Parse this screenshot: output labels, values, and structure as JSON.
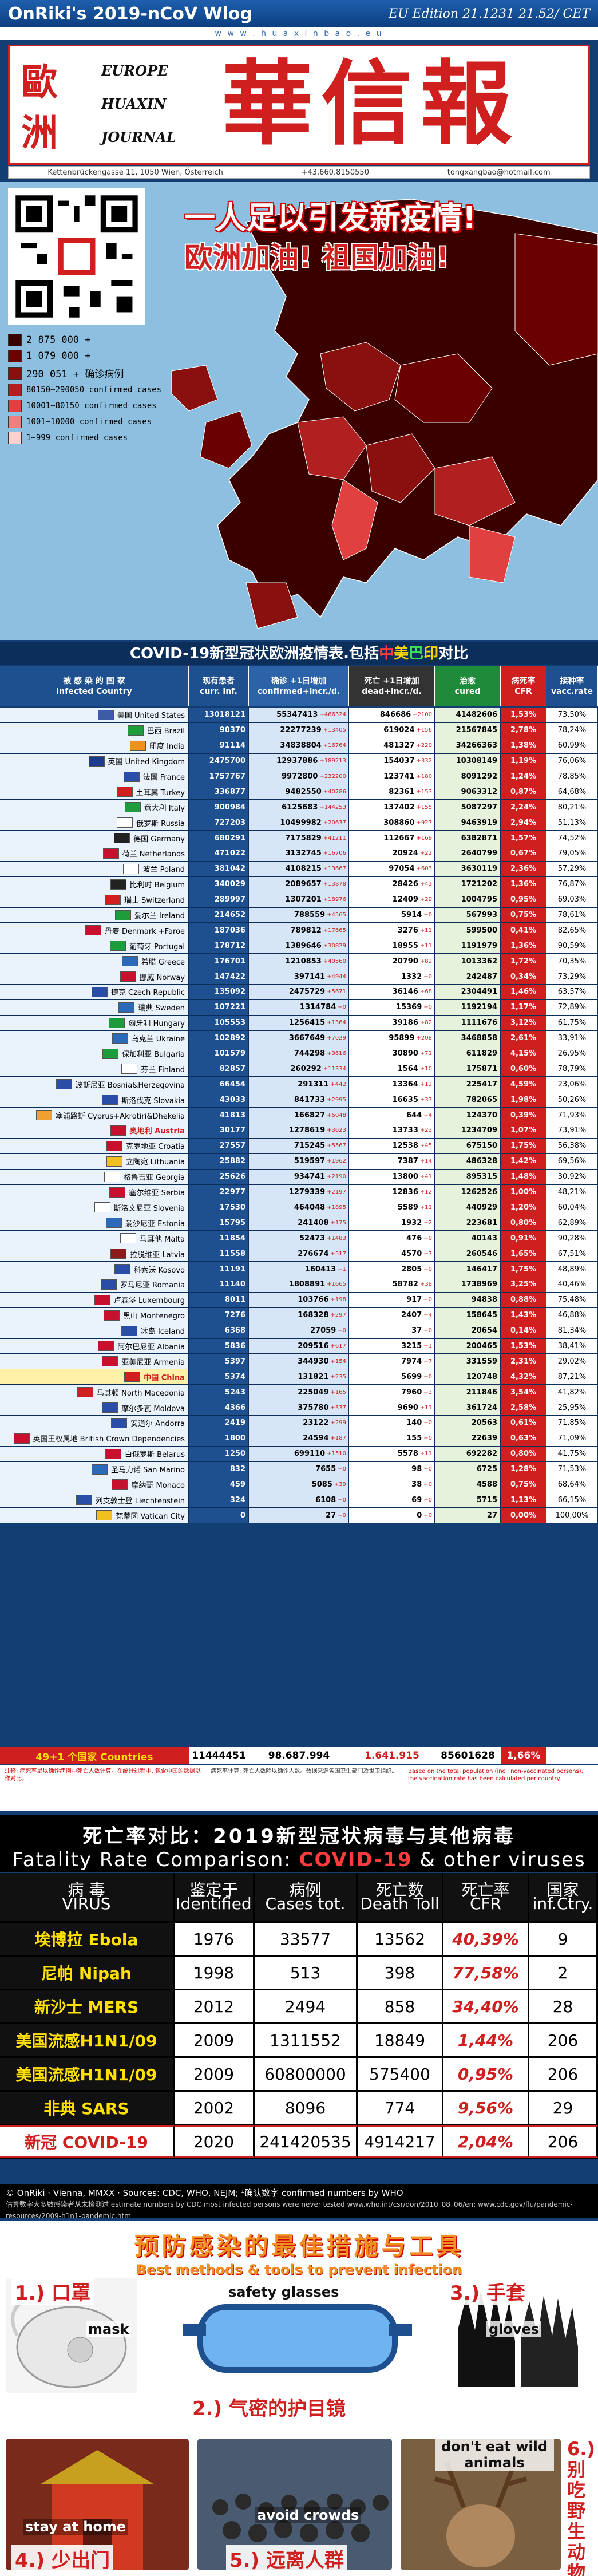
{
  "header": {
    "title": "OnRiki's 2019-nCoV Wlog",
    "edition": "EU Edition 21.1231 21.52/ CET",
    "url_strip": "w w w . h u a x i n b a o . e u"
  },
  "masthead": {
    "cn_left_top": "歐",
    "cn_left_bottom": "洲",
    "en_lines": [
      "EUROPE",
      "HUAXIN",
      "JOURNAL"
    ],
    "cn_title": "華信報",
    "address": "Kettenbrückengasse 11, 1050 Wien, Österreich",
    "phone": "+43.660.8150550",
    "email": "tongxangbao@hotmail.com"
  },
  "slogans": {
    "line1": "一人足以引发新疫情!",
    "line2": "欧洲加油! 祖国加油!"
  },
  "legend": [
    {
      "text": "2 875 000 +",
      "color": "#3a0000"
    },
    {
      "text": "1 079 000 +",
      "color": "#6b0000"
    },
    {
      "text": "290 051 + 确诊病例",
      "color": "#8a1010"
    },
    {
      "text": "80150~290050 confirmed cases",
      "color": "#b02020"
    },
    {
      "text": "10001~80150 confirmed cases",
      "color": "#e04040"
    },
    {
      "text": "1001~10000 confirmed cases",
      "color": "#f08080"
    },
    {
      "text": "1~999 confirmed cases",
      "color": "#ffd0d0"
    }
  ],
  "table": {
    "title_pre": "COVID-19新型冠状欧洲疫情表.包括",
    "title_cn": "中",
    "title_us": "美",
    "title_br": "巴",
    "title_in": "印",
    "title_post": "对比",
    "headers": {
      "country_cn": "被 感 染 的 国 家",
      "country_en": "infected Country",
      "cur_cn": "现有患者",
      "cur_en": "curr. inf.",
      "conf_cn": "确诊 +1日增加",
      "conf_en": "confirmed+incr./d.",
      "dead_cn": "死亡 +1日增加",
      "dead_en": "dead+incr./d.",
      "cured_cn": "治愈",
      "cured_en": "cured",
      "cfr_cn": "病死率",
      "cfr_en": "CFR",
      "vac_cn": "接种率",
      "vac_en": "vacc.rate"
    },
    "rows": [
      {
        "name": "美国 United States",
        "flag": "#3c5ba8",
        "cur": "13018121",
        "conf": "55347413",
        "ci": "+466324",
        "dead": "846686",
        "di": "+2100",
        "cured": "41482606",
        "cfr": "1,53%",
        "vac": "73,50%"
      },
      {
        "name": "巴西 Brazil",
        "flag": "#1e9b3b",
        "cur": "90370",
        "conf": "22277239",
        "ci": "+13405",
        "dead": "619024",
        "di": "+156",
        "cured": "21567845",
        "cfr": "2,78%",
        "vac": "78,24%"
      },
      {
        "name": "印度 India",
        "flag": "#f09020",
        "cur": "91114",
        "conf": "34838804",
        "ci": "+16764",
        "dead": "481327",
        "di": "+220",
        "cured": "34266363",
        "cfr": "1,38%",
        "vac": "60,99%"
      },
      {
        "name": "英国 United Kingdom",
        "flag": "#1e3a8a",
        "cur": "2475700",
        "conf": "12937886",
        "ci": "+189213",
        "dead": "154037",
        "di": "+332",
        "cured": "10308149",
        "cfr": "1,19%",
        "vac": "76,06%"
      },
      {
        "name": "法国 France",
        "flag": "#2a4ea8",
        "cur": "1757767",
        "conf": "9972800",
        "ci": "+232200",
        "dead": "123741",
        "di": "+180",
        "cured": "8091292",
        "cfr": "1,24%",
        "vac": "78,85%"
      },
      {
        "name": "土耳其 Turkey",
        "flag": "#d01f1f",
        "cur": "336877",
        "conf": "9482550",
        "ci": "+40786",
        "dead": "82361",
        "di": "+153",
        "cured": "9063312",
        "cfr": "0,87%",
        "vac": "64,68%"
      },
      {
        "name": "意大利 Italy",
        "flag": "#1e9b3b",
        "cur": "900984",
        "conf": "6125683",
        "ci": "+144253",
        "dead": "137402",
        "di": "+155",
        "cured": "5087297",
        "cfr": "2,24%",
        "vac": "80,21%"
      },
      {
        "name": "俄罗斯 Russia",
        "flag": "#ffffff",
        "cur": "727203",
        "conf": "10499982",
        "ci": "+20637",
        "dead": "308860",
        "di": "+927",
        "cured": "9463919",
        "cfr": "2,94%",
        "vac": "51,13%"
      },
      {
        "name": "德国 Germany",
        "flag": "#222222",
        "cur": "680291",
        "conf": "7175829",
        "ci": "+41211",
        "dead": "112667",
        "di": "+169",
        "cured": "6382871",
        "cfr": "1,57%",
        "vac": "74,52%"
      },
      {
        "name": "荷兰 Netherlands",
        "flag": "#c8102e",
        "cur": "471022",
        "conf": "3132745",
        "ci": "+16706",
        "dead": "20924",
        "di": "+22",
        "cured": "2640799",
        "cfr": "0,67%",
        "vac": "79,05%"
      },
      {
        "name": "波兰 Poland",
        "flag": "#ffffff",
        "cur": "381042",
        "conf": "4108215",
        "ci": "+13667",
        "dead": "97054",
        "di": "+603",
        "cured": "3630119",
        "cfr": "2,36%",
        "vac": "57,29%"
      },
      {
        "name": "比利时 Belgium",
        "flag": "#222222",
        "cur": "340029",
        "conf": "2089657",
        "ci": "+13878",
        "dead": "28426",
        "di": "+41",
        "cured": "1721202",
        "cfr": "1,36%",
        "vac": "76,87%"
      },
      {
        "name": "瑞士 Switzerland",
        "flag": "#d01f1f",
        "cur": "289997",
        "conf": "1307201",
        "ci": "+18976",
        "dead": "12409",
        "di": "+29",
        "cured": "1004795",
        "cfr": "0,95%",
        "vac": "69,03%"
      },
      {
        "name": "爱尔兰 Ireland",
        "flag": "#1e9b3b",
        "cur": "214652",
        "conf": "788559",
        "ci": "+4565",
        "dead": "5914",
        "di": "+0",
        "cured": "567993",
        "cfr": "0,75%",
        "vac": "78,61%"
      },
      {
        "name": "丹麦 Denmark +Faroe",
        "flag": "#c8102e",
        "cur": "187036",
        "conf": "789812",
        "ci": "+17665",
        "dead": "3276",
        "di": "+11",
        "cured": "599500",
        "cfr": "0,41%",
        "vac": "82,65%"
      },
      {
        "name": "葡萄牙 Portugal",
        "flag": "#1e9b3b",
        "cur": "178712",
        "conf": "1389646",
        "ci": "+30829",
        "dead": "18955",
        "di": "+11",
        "cured": "1191979",
        "cfr": "1,36%",
        "vac": "90,59%"
      },
      {
        "name": "希腊 Greece",
        "flag": "#2a6ab8",
        "cur": "176701",
        "conf": "1210853",
        "ci": "+40560",
        "dead": "20790",
        "di": "+82",
        "cured": "1013362",
        "cfr": "1,72%",
        "vac": "70,35%"
      },
      {
        "name": "挪威 Norway",
        "flag": "#c8102e",
        "cur": "147422",
        "conf": "397141",
        "ci": "+4944",
        "dead": "1332",
        "di": "+0",
        "cured": "242487",
        "cfr": "0,34%",
        "vac": "73,29%"
      },
      {
        "name": "捷克 Czech Republic",
        "flag": "#2a4ea8",
        "cur": "135092",
        "conf": "2475729",
        "ci": "+5671",
        "dead": "36146",
        "di": "+68",
        "cured": "2304491",
        "cfr": "1,46%",
        "vac": "63,57%"
      },
      {
        "name": "瑞典 Sweden",
        "flag": "#2a6ab8",
        "cur": "107221",
        "conf": "1314784",
        "ci": "+0",
        "dead": "15369",
        "di": "+0",
        "cured": "1192194",
        "cfr": "1,17%",
        "vac": "72,89%"
      },
      {
        "name": "匈牙利 Hungary",
        "flag": "#1e9b3b",
        "cur": "105553",
        "conf": "1256415",
        "ci": "+1364",
        "dead": "39186",
        "di": "+82",
        "cured": "1111676",
        "cfr": "3,12%",
        "vac": "61,75%"
      },
      {
        "name": "乌克兰 Ukraine",
        "flag": "#2a6ab8",
        "cur": "102892",
        "conf": "3667649",
        "ci": "+7029",
        "dead": "95899",
        "di": "+208",
        "cured": "3468858",
        "cfr": "2,61%",
        "vac": "33,91%"
      },
      {
        "name": "保加利亚 Bulgaria",
        "flag": "#1e9b3b",
        "cur": "101579",
        "conf": "744298",
        "ci": "+3616",
        "dead": "30890",
        "di": "+71",
        "cured": "611829",
        "cfr": "4,15%",
        "vac": "26,95%"
      },
      {
        "name": "芬兰 Finland",
        "flag": "#ffffff",
        "cur": "82857",
        "conf": "260292",
        "ci": "+11334",
        "dead": "1564",
        "di": "+10",
        "cured": "175871",
        "cfr": "0,60%",
        "vac": "78,79%"
      },
      {
        "name": "波斯尼亚 Bosnia&Herzegovina",
        "flag": "#2a4ea8",
        "cur": "66454",
        "conf": "291311",
        "ci": "+442",
        "dead": "13364",
        "di": "+12",
        "cured": "225417",
        "cfr": "4,59%",
        "vac": "23,06%"
      },
      {
        "name": "斯洛伐克 Slovakia",
        "flag": "#2a4ea8",
        "cur": "43033",
        "conf": "841733",
        "ci": "+2995",
        "dead": "16635",
        "di": "+37",
        "cured": "782065",
        "cfr": "1,98%",
        "vac": "50,26%"
      },
      {
        "name": "塞浦路斯 Cyprus+Akrotiri&Dhekelia",
        "flag": "#f0a030",
        "cur": "41813",
        "conf": "166827",
        "ci": "+5048",
        "dead": "644",
        "di": "+4",
        "cured": "124370",
        "cfr": "0,39%",
        "vac": "71,93%"
      },
      {
        "name": "奥地利 Austria",
        "flag": "#c8102e",
        "cur": "30177",
        "conf": "1278619",
        "ci": "+3623",
        "dead": "13733",
        "di": "+23",
        "cured": "1234709",
        "cfr": "1,07%",
        "vac": "73,91%",
        "hl": true
      },
      {
        "name": "克罗地亚 Croatia",
        "flag": "#c8102e",
        "cur": "27557",
        "conf": "715245",
        "ci": "+5567",
        "dead": "12538",
        "di": "+45",
        "cured": "675150",
        "cfr": "1,75%",
        "vac": "56,38%"
      },
      {
        "name": "立陶宛 Lithuania",
        "flag": "#f0c020",
        "cur": "25882",
        "conf": "519597",
        "ci": "+1962",
        "dead": "7387",
        "di": "+14",
        "cured": "486328",
        "cfr": "1,42%",
        "vac": "69,56%"
      },
      {
        "name": "格鲁吉亚 Georgia",
        "flag": "#ffffff",
        "cur": "25626",
        "conf": "934741",
        "ci": "+2190",
        "dead": "13800",
        "di": "+41",
        "cured": "895315",
        "cfr": "1,48%",
        "vac": "30,92%"
      },
      {
        "name": "塞尔维亚 Serbia",
        "flag": "#c8102e",
        "cur": "22977",
        "conf": "1279339",
        "ci": "+2197",
        "dead": "12836",
        "di": "+12",
        "cured": "1262526",
        "cfr": "1,00%",
        "vac": "48,21%"
      },
      {
        "name": "斯洛文尼亚 Slovenia",
        "flag": "#ffffff",
        "cur": "17530",
        "conf": "464048",
        "ci": "+1895",
        "dead": "5589",
        "di": "+11",
        "cured": "440929",
        "cfr": "1,20%",
        "vac": "60,04%"
      },
      {
        "name": "爱沙尼亚 Estonia",
        "flag": "#2a6ab8",
        "cur": "15795",
        "conf": "241408",
        "ci": "+175",
        "dead": "1932",
        "di": "+2",
        "cured": "223681",
        "cfr": "0,80%",
        "vac": "62,89%"
      },
      {
        "name": "马耳他 Malta",
        "flag": "#ffffff",
        "cur": "11854",
        "conf": "52473",
        "ci": "+1483",
        "dead": "476",
        "di": "+0",
        "cured": "40143",
        "cfr": "0,91%",
        "vac": "90,28%"
      },
      {
        "name": "拉脱维亚 Latvia",
        "flag": "#8b1a1a",
        "cur": "11558",
        "conf": "276674",
        "ci": "+517",
        "dead": "4570",
        "di": "+7",
        "cured": "260546",
        "cfr": "1,65%",
        "vac": "67,51%"
      },
      {
        "name": "科索沃 Kosovo",
        "flag": "#2a4ea8",
        "cur": "11191",
        "conf": "160413",
        "ci": "+1",
        "dead": "2805",
        "di": "+0",
        "cured": "146417",
        "cfr": "1,75%",
        "vac": "48,89%"
      },
      {
        "name": "罗马尼亚 Romania",
        "flag": "#2a4ea8",
        "cur": "11140",
        "conf": "1808891",
        "ci": "+1665",
        "dead": "58782",
        "di": "+38",
        "cured": "1738969",
        "cfr": "3,25%",
        "vac": "40,46%"
      },
      {
        "name": "卢森堡 Luxembourg",
        "flag": "#c8102e",
        "cur": "8011",
        "conf": "103766",
        "ci": "+198",
        "dead": "917",
        "di": "+0",
        "cured": "94838",
        "cfr": "0,88%",
        "vac": "75,48%"
      },
      {
        "name": "黑山 Montenegro",
        "flag": "#c8102e",
        "cur": "7276",
        "conf": "168328",
        "ci": "+297",
        "dead": "2407",
        "di": "+4",
        "cured": "158645",
        "cfr": "1,43%",
        "vac": "46,88%"
      },
      {
        "name": "冰岛 Iceland",
        "flag": "#2a4ea8",
        "cur": "6368",
        "conf": "27059",
        "ci": "+0",
        "dead": "37",
        "di": "+0",
        "cured": "20654",
        "cfr": "0,14%",
        "vac": "81,34%"
      },
      {
        "name": "阿尔巴尼亚 Albania",
        "flag": "#c8102e",
        "cur": "5836",
        "conf": "209516",
        "ci": "+617",
        "dead": "3215",
        "di": "+1",
        "cured": "200465",
        "cfr": "1,53%",
        "vac": "38,41%"
      },
      {
        "name": "亚美尼亚 Armenia",
        "flag": "#c8102e",
        "cur": "5397",
        "conf": "344930",
        "ci": "+154",
        "dead": "7974",
        "di": "+7",
        "cured": "331559",
        "cfr": "2,31%",
        "vac": "29,02%"
      },
      {
        "name": "中国 China",
        "flag": "#d01f1f",
        "cur": "5374",
        "conf": "131821",
        "ci": "+235",
        "dead": "5699",
        "di": "+0",
        "cured": "120748",
        "cfr": "4,32%",
        "vac": "87,21%",
        "china": true
      },
      {
        "name": "马其顿 North Macedonia",
        "flag": "#d01f1f",
        "cur": "5243",
        "conf": "225049",
        "ci": "+165",
        "dead": "7960",
        "di": "+3",
        "cured": "211846",
        "cfr": "3,54%",
        "vac": "41,82%"
      },
      {
        "name": "摩尔多瓦 Moldova",
        "flag": "#2a4ea8",
        "cur": "4366",
        "conf": "375780",
        "ci": "+337",
        "dead": "9690",
        "di": "+11",
        "cured": "361724",
        "cfr": "2,58%",
        "vac": "25,95%"
      },
      {
        "name": "安道尔 Andorra",
        "flag": "#2a4ea8",
        "cur": "2419",
        "conf": "23122",
        "ci": "+299",
        "dead": "140",
        "di": "+0",
        "cured": "20563",
        "cfr": "0,61%",
        "vac": "71,85%"
      },
      {
        "name": "英国王权属地 British Crown Dependencies",
        "flag": "#c8102e",
        "cur": "1800",
        "conf": "24594",
        "ci": "+187",
        "dead": "155",
        "di": "+0",
        "cured": "22639",
        "cfr": "0,63%",
        "vac": "71,09%"
      },
      {
        "name": "白俄罗斯 Belarus",
        "flag": "#c8102e",
        "cur": "1250",
        "conf": "699110",
        "ci": "+1510",
        "dead": "5578",
        "di": "+11",
        "cured": "692282",
        "cfr": "0,80%",
        "vac": "41,75%"
      },
      {
        "name": "圣马力诺 San Marino",
        "flag": "#2a6ab8",
        "cur": "832",
        "conf": "7655",
        "ci": "+0",
        "dead": "98",
        "di": "+0",
        "cured": "6725",
        "cfr": "1,28%",
        "vac": "71,53%"
      },
      {
        "name": "摩纳哥 Monaco",
        "flag": "#c8102e",
        "cur": "459",
        "conf": "5085",
        "ci": "+39",
        "dead": "38",
        "di": "+0",
        "cured": "4588",
        "cfr": "0,75%",
        "vac": "68,64%"
      },
      {
        "name": "列支敦士登 Liechtenstein",
        "flag": "#2a4ea8",
        "cur": "324",
        "conf": "6108",
        "ci": "+0",
        "dead": "69",
        "di": "+0",
        "cured": "5715",
        "cfr": "1,13%",
        "vac": "66,15%"
      },
      {
        "name": "梵蒂冈 Vatican City",
        "flag": "#f0c020",
        "cur": "0",
        "conf": "27",
        "ci": "+0",
        "dead": "0",
        "di": "+0",
        "cured": "27",
        "cfr": "0,00%",
        "vac": "100,00%"
      }
    ],
    "totals": {
      "label": "49+1 个国家 Countries",
      "cur": "11444451",
      "conf": "98.687.994",
      "dead": "1.641.915",
      "cured": "85601628",
      "cfr": "1,66%"
    },
    "footnote_left": "注释: 病死率是以确诊病例中死亡人数计算。在统计过程中, 包含中国的数据以作对比。",
    "footnote_mid": "病死率计算: 死亡人数除以确诊人数。数据来源各国卫生部门及世卫组织。",
    "footnote_right": "Based on the total population (incl. non-vaccinated persons), the vaccination rate has been calculated per country."
  },
  "fatality": {
    "title_cn": "死亡率对比：2019新型冠状病毒与其他病毒",
    "title_en_pre": "Fatality Rate Comparison:",
    "title_en_red": "COVID-19",
    "title_en_post": "& other viruses",
    "headers": [
      {
        "cn": "病 毒",
        "en": "VIRUS"
      },
      {
        "cn": "鉴定于",
        "en": "Identified"
      },
      {
        "cn": "病例",
        "en": "Cases tot."
      },
      {
        "cn": "死亡数",
        "en": "Death Toll"
      },
      {
        "cn": "死亡率",
        "en": "CFR"
      },
      {
        "cn": "国家",
        "en": "inf.Ctry."
      }
    ],
    "rows": [
      {
        "virus": "埃博拉 Ebola",
        "year": "1976",
        "cases": "33577",
        "death": "13562",
        "cfr": "40,39%",
        "ctry": "9"
      },
      {
        "virus": "尼帕 Nipah",
        "year": "1998",
        "cases": "513",
        "death": "398",
        "cfr": "77,58%",
        "ctry": "2"
      },
      {
        "virus": "新沙士 MERS",
        "year": "2012",
        "cases": "2494",
        "death": "858",
        "cfr": "34,40%",
        "ctry": "28"
      },
      {
        "virus": "美国流感H1N1/09",
        "year": "2009",
        "cases": "1311552",
        "death": "18849",
        "cfr": "1,44%",
        "ctry": "206"
      },
      {
        "virus": "美国流感H1N1/09",
        "year": "2009",
        "cases": "60800000",
        "death": "575400",
        "cfr": "0,95%",
        "ctry": "206"
      },
      {
        "virus": "非典 SARS",
        "year": "2002",
        "cases": "8096",
        "death": "774",
        "cfr": "9,56%",
        "ctry": "29"
      },
      {
        "virus": "新冠 COVID-19",
        "year": "2020",
        "cases": "241420535",
        "death": "4914217",
        "cfr": "2,04%",
        "ctry": "206",
        "covid": true
      }
    ],
    "source_line": "© OnRiki · Vienna, MMXX · Sources: CDC, WHO, NEJM; ¹确认数字 confirmed numbers by WHO",
    "source_line2": "估算数字大多数感染者从未检测过 estimate numbers by CDC most infected persons were never tested www.who.int/csr/don/2010_08_06/en; www.cdc.gov/flu/pandemic-resources/2009-h1n1-pandemic.htm"
  },
  "prevention": {
    "title_cn": "预防感染的最佳措施与工具",
    "title_en": "Best methods & tools to prevent infection",
    "items": [
      {
        "cn": "1.) 口罩",
        "en": "mask"
      },
      {
        "cn": "2.) 气密的护目镜",
        "en": "safety glasses"
      },
      {
        "cn": "3.) 手套",
        "en": "gloves"
      },
      {
        "cn": "4.) 少出门",
        "en": "stay at home"
      },
      {
        "cn": "5.) 远离人群",
        "en": "avoid crowds"
      },
      {
        "cn": "6.) 别吃野生动物",
        "en": "don't eat wild animals"
      }
    ]
  }
}
